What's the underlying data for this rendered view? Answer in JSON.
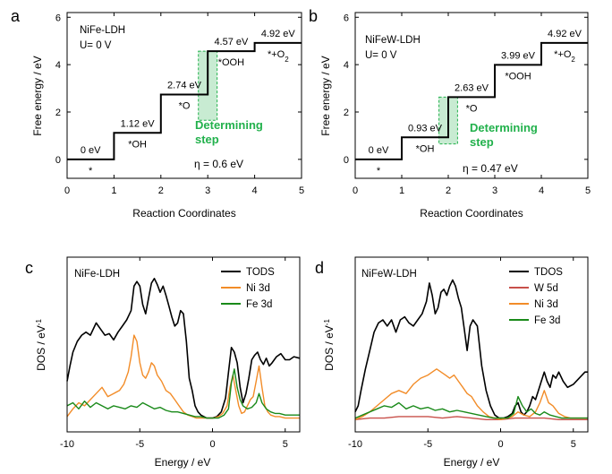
{
  "panels": {
    "a": {
      "letter": "a",
      "title": "NiFe-LDH",
      "potential": "U= 0 V",
      "eta": "η = 0.6 eV"
    },
    "b": {
      "letter": "b",
      "title": "NiFeW-LDH",
      "potential": "U= 0 V",
      "eta": "η = 0.47 eV"
    },
    "c": {
      "letter": "c",
      "title": "NiFe-LDH"
    },
    "d": {
      "letter": "d",
      "title": "NiFeW-LDH"
    }
  },
  "determining_step_label": [
    "Determining",
    "step"
  ],
  "chart_data": [
    {
      "panel": "a",
      "type": "line",
      "xlabel": "Reaction Coordinates",
      "ylabel": "Free energy / eV",
      "xlim": [
        0,
        5
      ],
      "ylim": [
        -0.8,
        6.2
      ],
      "xticks": [
        0,
        1,
        2,
        3,
        4,
        5
      ],
      "yticks": [
        0,
        2,
        4,
        6
      ],
      "steps": [
        {
          "x0": 0,
          "x1": 1,
          "y": 0,
          "energy_label": "0 eV",
          "species": "*"
        },
        {
          "x0": 1,
          "x1": 2,
          "y": 1.12,
          "energy_label": "1.12 eV",
          "species": "*OH"
        },
        {
          "x0": 2,
          "x1": 3,
          "y": 2.74,
          "energy_label": "2.74 eV",
          "species": "*O"
        },
        {
          "x0": 3,
          "x1": 4,
          "y": 4.57,
          "energy_label": "4.57 eV",
          "species": "*OOH"
        },
        {
          "x0": 4,
          "x1": 5,
          "y": 4.92,
          "energy_label": "4.92 eV",
          "species": "*+O2"
        }
      ],
      "highlight_x": [
        2.8,
        3.2
      ],
      "highlight_y": [
        1.65,
        4.57
      ],
      "highlight_color": "#22b14c"
    },
    {
      "panel": "b",
      "type": "line",
      "xlabel": "Reaction Coordinates",
      "ylabel": "Free energy / eV",
      "xlim": [
        0,
        5
      ],
      "ylim": [
        -0.8,
        6.2
      ],
      "xticks": [
        0,
        1,
        2,
        3,
        4,
        5
      ],
      "yticks": [
        0,
        2,
        4,
        6
      ],
      "steps": [
        {
          "x0": 0,
          "x1": 1,
          "y": 0,
          "energy_label": "0 eV",
          "species": "*"
        },
        {
          "x0": 1,
          "x1": 2,
          "y": 0.93,
          "energy_label": "0.93 eV",
          "species": "*OH"
        },
        {
          "x0": 2,
          "x1": 3,
          "y": 2.63,
          "energy_label": "2.63 eV",
          "species": "*O"
        },
        {
          "x0": 3,
          "x1": 4,
          "y": 3.99,
          "energy_label": "3.99 eV",
          "species": "*OOH"
        },
        {
          "x0": 4,
          "x1": 5,
          "y": 4.92,
          "energy_label": "4.92 eV",
          "species": "*+O2"
        }
      ],
      "highlight_x": [
        1.8,
        2.2
      ],
      "highlight_y": [
        0.65,
        2.63
      ],
      "highlight_color": "#22b14c"
    },
    {
      "panel": "c",
      "type": "line",
      "xlabel": "Energy / eV",
      "ylabel": "DOS / eV-1",
      "xlim": [
        -10,
        6
      ],
      "xticks": [
        -10,
        -5,
        0,
        5
      ],
      "ylim": [
        0,
        1
      ],
      "series": [
        {
          "name": "TODS",
          "color": "#000000",
          "x": [
            -10,
            -9.8,
            -9.6,
            -9.3,
            -9.0,
            -8.7,
            -8.4,
            -8.0,
            -7.7,
            -7.4,
            -7.1,
            -6.8,
            -6.5,
            -6.2,
            -5.9,
            -5.6,
            -5.4,
            -5.2,
            -5.0,
            -4.8,
            -4.6,
            -4.4,
            -4.2,
            -4.0,
            -3.8,
            -3.6,
            -3.4,
            -3.2,
            -3.0,
            -2.8,
            -2.6,
            -2.4,
            -2.2,
            -2.0,
            -1.8,
            -1.6,
            -1.4,
            -1.2,
            -1.0,
            -0.8,
            -0.6,
            -0.4,
            -0.2,
            0,
            0.3,
            0.6,
            0.9,
            1.1,
            1.3,
            1.5,
            1.7,
            1.9,
            2.1,
            2.3,
            2.5,
            2.7,
            2.9,
            3.1,
            3.3,
            3.5,
            3.7,
            3.9,
            4.1,
            4.4,
            4.7,
            5.0,
            5.3,
            5.6,
            6.0
          ],
          "y": [
            0.26,
            0.36,
            0.45,
            0.52,
            0.56,
            0.58,
            0.56,
            0.64,
            0.6,
            0.56,
            0.57,
            0.53,
            0.58,
            0.62,
            0.66,
            0.72,
            0.88,
            0.91,
            0.88,
            0.76,
            0.7,
            0.8,
            0.9,
            0.93,
            0.89,
            0.84,
            0.88,
            0.82,
            0.75,
            0.68,
            0.62,
            0.64,
            0.72,
            0.7,
            0.52,
            0.28,
            0.2,
            0.1,
            0.06,
            0.04,
            0.03,
            0.02,
            0.02,
            0.02,
            0.03,
            0.06,
            0.15,
            0.32,
            0.48,
            0.45,
            0.38,
            0.22,
            0.12,
            0.18,
            0.28,
            0.4,
            0.43,
            0.45,
            0.4,
            0.37,
            0.41,
            0.36,
            0.38,
            0.42,
            0.44,
            0.4,
            0.4,
            0.42,
            0.41
          ]
        },
        {
          "name": "Ni  3d",
          "color": "#f28c28",
          "x": [
            -10,
            -9.6,
            -9.2,
            -8.8,
            -8.4,
            -8.0,
            -7.6,
            -7.2,
            -6.8,
            -6.4,
            -6.1,
            -5.8,
            -5.6,
            -5.4,
            -5.2,
            -5.0,
            -4.8,
            -4.6,
            -4.4,
            -4.2,
            -4.0,
            -3.8,
            -3.5,
            -3.2,
            -2.9,
            -2.6,
            -2.3,
            -2.0,
            -1.7,
            -1.4,
            -1.1,
            -0.8,
            -0.5,
            -0.2,
            0.1,
            0.4,
            0.7,
            1.0,
            1.2,
            1.4,
            1.6,
            1.8,
            2.0,
            2.2,
            2.4,
            2.6,
            2.8,
            3.0,
            3.2,
            3.4,
            3.6,
            3.8,
            4.0,
            4.3,
            4.6,
            5.0,
            5.4,
            5.8,
            6.0
          ],
          "y": [
            0.03,
            0.08,
            0.12,
            0.1,
            0.14,
            0.18,
            0.22,
            0.16,
            0.18,
            0.2,
            0.24,
            0.32,
            0.42,
            0.56,
            0.52,
            0.38,
            0.3,
            0.28,
            0.32,
            0.38,
            0.36,
            0.3,
            0.26,
            0.2,
            0.18,
            0.14,
            0.1,
            0.06,
            0.04,
            0.03,
            0.02,
            0.02,
            0.02,
            0.02,
            0.02,
            0.03,
            0.05,
            0.1,
            0.22,
            0.3,
            0.2,
            0.1,
            0.05,
            0.06,
            0.1,
            0.14,
            0.16,
            0.26,
            0.36,
            0.22,
            0.1,
            0.06,
            0.04,
            0.03,
            0.03,
            0.02,
            0.02,
            0.02,
            0.02
          ]
        },
        {
          "name": "Fe 3d",
          "color": "#1a8a1a",
          "x": [
            -10,
            -9.6,
            -9.2,
            -8.8,
            -8.4,
            -8.0,
            -7.6,
            -7.2,
            -6.8,
            -6.4,
            -6.0,
            -5.6,
            -5.2,
            -4.8,
            -4.4,
            -4.0,
            -3.6,
            -3.2,
            -2.8,
            -2.4,
            -2.0,
            -1.6,
            -1.2,
            -0.8,
            -0.4,
            0,
            0.4,
            0.8,
            1.1,
            1.3,
            1.5,
            1.7,
            1.9,
            2.1,
            2.4,
            2.7,
            3.0,
            3.2,
            3.4,
            3.7,
            4.0,
            4.3,
            4.6,
            5.0,
            5.4,
            5.8,
            6.0
          ],
          "y": [
            0.1,
            0.12,
            0.08,
            0.13,
            0.09,
            0.12,
            0.1,
            0.08,
            0.1,
            0.09,
            0.08,
            0.1,
            0.09,
            0.12,
            0.1,
            0.08,
            0.09,
            0.07,
            0.06,
            0.06,
            0.05,
            0.04,
            0.03,
            0.03,
            0.02,
            0.02,
            0.02,
            0.04,
            0.08,
            0.25,
            0.34,
            0.22,
            0.14,
            0.1,
            0.08,
            0.09,
            0.12,
            0.18,
            0.12,
            0.08,
            0.06,
            0.05,
            0.05,
            0.04,
            0.04,
            0.04,
            0.04
          ]
        }
      ]
    },
    {
      "panel": "d",
      "type": "line",
      "xlabel": "Energy / eV",
      "ylabel": "DOS / eV-1",
      "xlim": [
        -10,
        6
      ],
      "xticks": [
        -10,
        -5,
        0,
        5
      ],
      "ylim": [
        0,
        1
      ],
      "series": [
        {
          "name": "TDOS",
          "color": "#000000",
          "x": [
            -10,
            -9.8,
            -9.6,
            -9.3,
            -9.0,
            -8.7,
            -8.4,
            -8.1,
            -7.8,
            -7.5,
            -7.2,
            -6.9,
            -6.6,
            -6.3,
            -6.0,
            -5.7,
            -5.4,
            -5.1,
            -4.9,
            -4.7,
            -4.5,
            -4.3,
            -4.1,
            -3.9,
            -3.7,
            -3.5,
            -3.3,
            -3.1,
            -2.9,
            -2.7,
            -2.5,
            -2.3,
            -2.1,
            -1.9,
            -1.6,
            -1.3,
            -1.0,
            -0.7,
            -0.4,
            -0.1,
            0.2,
            0.5,
            0.8,
            1.0,
            1.2,
            1.4,
            1.6,
            1.8,
            2.0,
            2.2,
            2.4,
            2.6,
            2.8,
            3.0,
            3.2,
            3.4,
            3.6,
            3.8,
            4.0,
            4.3,
            4.6,
            5.0,
            5.4,
            5.8,
            6.0
          ],
          "y": [
            0.06,
            0.1,
            0.2,
            0.34,
            0.46,
            0.58,
            0.64,
            0.66,
            0.62,
            0.66,
            0.58,
            0.66,
            0.68,
            0.64,
            0.62,
            0.66,
            0.7,
            0.78,
            0.9,
            0.82,
            0.7,
            0.74,
            0.84,
            0.86,
            0.82,
            0.88,
            0.92,
            0.88,
            0.8,
            0.74,
            0.6,
            0.46,
            0.62,
            0.66,
            0.62,
            0.36,
            0.2,
            0.1,
            0.04,
            0.02,
            0.02,
            0.03,
            0.05,
            0.1,
            0.12,
            0.06,
            0.04,
            0.06,
            0.1,
            0.16,
            0.14,
            0.2,
            0.26,
            0.32,
            0.26,
            0.22,
            0.3,
            0.28,
            0.32,
            0.26,
            0.22,
            0.24,
            0.28,
            0.32,
            0.32
          ]
        },
        {
          "name": "W  5d",
          "color": "#c8504a",
          "x": [
            -10,
            -9,
            -8,
            -7,
            -6,
            -5,
            -4,
            -3,
            -2,
            -1,
            0,
            1,
            2,
            3,
            4,
            5,
            6
          ],
          "y": [
            0.01,
            0.02,
            0.02,
            0.03,
            0.03,
            0.03,
            0.02,
            0.03,
            0.02,
            0.01,
            0.01,
            0.02,
            0.02,
            0.02,
            0.01,
            0.01,
            0.01
          ]
        },
        {
          "name": "Ni  3d",
          "color": "#f28c28",
          "x": [
            -10,
            -9.5,
            -9.0,
            -8.5,
            -8.0,
            -7.5,
            -7.0,
            -6.5,
            -6.0,
            -5.5,
            -5.0,
            -4.7,
            -4.4,
            -4.1,
            -3.8,
            -3.5,
            -3.2,
            -2.9,
            -2.6,
            -2.3,
            -2.0,
            -1.6,
            -1.2,
            -0.8,
            -0.4,
            0,
            0.4,
            0.8,
            1.2,
            1.6,
            2.0,
            2.4,
            2.7,
            3.0,
            3.3,
            3.6,
            4.0,
            4.4,
            4.8,
            5.2,
            5.6,
            6.0
          ],
          "y": [
            0.01,
            0.03,
            0.06,
            0.1,
            0.14,
            0.18,
            0.2,
            0.18,
            0.24,
            0.28,
            0.3,
            0.32,
            0.34,
            0.32,
            0.3,
            0.28,
            0.3,
            0.26,
            0.22,
            0.18,
            0.16,
            0.1,
            0.06,
            0.03,
            0.02,
            0.01,
            0.02,
            0.03,
            0.06,
            0.04,
            0.03,
            0.06,
            0.12,
            0.2,
            0.12,
            0.1,
            0.05,
            0.03,
            0.02,
            0.02,
            0.02,
            0.02
          ]
        },
        {
          "name": "Fe 3d",
          "color": "#1a8a1a",
          "x": [
            -10,
            -9.5,
            -9.0,
            -8.5,
            -8.0,
            -7.5,
            -7.0,
            -6.5,
            -6.0,
            -5.5,
            -5.0,
            -4.5,
            -4.0,
            -3.5,
            -3.0,
            -2.5,
            -2.0,
            -1.5,
            -1.0,
            -0.5,
            0,
            0.5,
            0.9,
            1.2,
            1.5,
            1.8,
            2.1,
            2.4,
            2.7,
            3.0,
            3.4,
            3.8,
            4.2,
            4.6,
            5.0,
            5.5,
            6.0
          ],
          "y": [
            0.02,
            0.04,
            0.06,
            0.08,
            0.1,
            0.09,
            0.12,
            0.08,
            0.1,
            0.08,
            0.09,
            0.07,
            0.08,
            0.06,
            0.07,
            0.06,
            0.05,
            0.04,
            0.03,
            0.02,
            0.02,
            0.02,
            0.05,
            0.16,
            0.1,
            0.06,
            0.08,
            0.05,
            0.04,
            0.06,
            0.04,
            0.03,
            0.02,
            0.02,
            0.02,
            0.02,
            0.02
          ]
        }
      ]
    }
  ]
}
